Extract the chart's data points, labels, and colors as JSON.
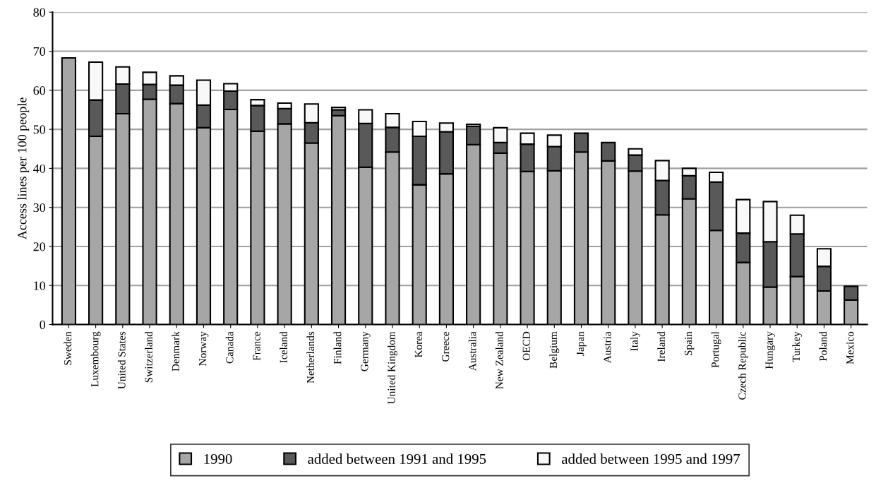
{
  "chart_data": {
    "type": "bar",
    "stacked": true,
    "ylabel": "Access lines per 100 people",
    "categories": [
      "Sweden",
      "Luxembourg",
      "United States",
      "Switzerland",
      "Denmark",
      "Norway",
      "Canada",
      "France",
      "Iceland",
      "Netherlands",
      "Finland",
      "Germany",
      "United Kingdom",
      "Korea",
      "Greece",
      "Australia",
      "New Zealand",
      "OECD",
      "Belgium",
      "Japan",
      "Austria",
      "Italy",
      "Ireland",
      "Spain",
      "Portugal",
      "Czech Republic",
      "Hungary",
      "Turkey",
      "Poland",
      "Mexico"
    ],
    "series": [
      {
        "name": "1990",
        "color": "#a6a6a6",
        "values": [
          68.3,
          48.2,
          54.0,
          57.7,
          56.6,
          50.4,
          55.1,
          49.5,
          51.4,
          46.5,
          53.5,
          40.3,
          44.2,
          35.8,
          38.6,
          46.1,
          43.9,
          39.2,
          39.4,
          44.2,
          41.9,
          39.3,
          28.1,
          32.2,
          24.1,
          15.9,
          9.6,
          12.3,
          8.6,
          6.3
        ]
      },
      {
        "name": "added between 1991 and 1995",
        "color": "#595959",
        "values": [
          null,
          9.3,
          7.6,
          3.8,
          4.7,
          5.8,
          4.7,
          6.6,
          3.9,
          5.2,
          1.5,
          11.2,
          6.3,
          12.4,
          10.8,
          4.7,
          2.7,
          7.0,
          6.2,
          4.8,
          4.7,
          4.1,
          8.8,
          5.9,
          12.4,
          7.5,
          11.6,
          10.9,
          6.3,
          3.5
        ]
      },
      {
        "name": "added between 1995 and 1997",
        "color": "#f8f8f8",
        "values": [
          null,
          9.7,
          4.4,
          3.1,
          2.4,
          6.4,
          1.9,
          1.5,
          1.4,
          4.8,
          0.6,
          3.5,
          3.5,
          3.8,
          2.2,
          0.5,
          3.8,
          2.8,
          2.9,
          null,
          null,
          1.6,
          5.1,
          1.9,
          2.5,
          8.6,
          10.3,
          4.8,
          4.5,
          null
        ]
      }
    ],
    "ylim": [
      0,
      80
    ],
    "yticks": [
      0,
      10,
      20,
      30,
      40,
      50,
      60,
      70,
      80
    ],
    "grid": "y",
    "legend": "bottom"
  }
}
